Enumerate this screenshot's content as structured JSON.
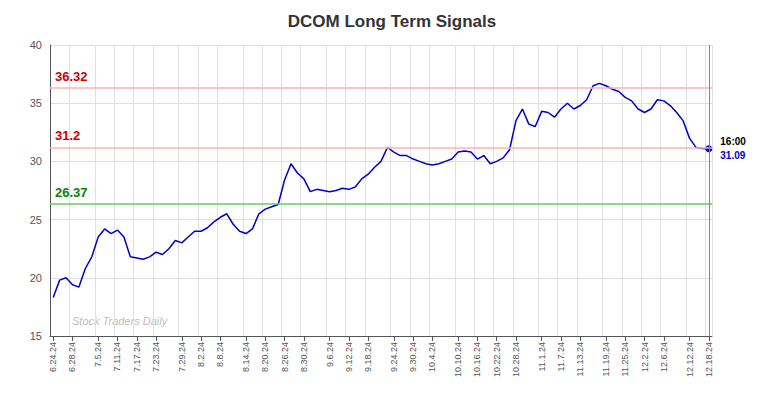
{
  "chart_data": {
    "type": "line",
    "title": "DCOM Long Term Signals",
    "watermark": "Stock Traders Daily",
    "categories": [
      "6.24.24",
      null,
      null,
      "6.28.24",
      null,
      null,
      null,
      "7.5.24",
      null,
      null,
      "7.11.24",
      null,
      null,
      "7.17.24",
      null,
      null,
      "7.23.24",
      null,
      null,
      null,
      "7.29.24",
      null,
      null,
      "8.2.24",
      null,
      null,
      "8.8.24",
      null,
      null,
      null,
      "8.14.24",
      null,
      null,
      "8.20.24",
      null,
      null,
      "8.26.24",
      null,
      null,
      "8.30.24",
      null,
      null,
      null,
      "9.6.24",
      null,
      null,
      "9.12.24",
      null,
      null,
      "9.18.24",
      null,
      null,
      null,
      "9.24.24",
      null,
      null,
      "9.30.24",
      null,
      null,
      "10.4.24",
      null,
      null,
      null,
      "10.10.24",
      null,
      null,
      "10.16.24",
      null,
      null,
      "10.22.24",
      null,
      null,
      "10.28.24",
      null,
      null,
      null,
      "11.1.24",
      null,
      null,
      "11.7.24",
      null,
      null,
      "11.13.24",
      null,
      null,
      null,
      "11.19.24",
      null,
      null,
      "11.25.24",
      null,
      null,
      "12.2.24",
      null,
      null,
      "12.6.24",
      null,
      null,
      null,
      "12.12.24",
      null,
      null,
      "12.18.24"
    ],
    "values": [
      18.3,
      19.8,
      20.0,
      19.4,
      19.2,
      20.8,
      21.8,
      23.5,
      24.2,
      23.8,
      24.1,
      23.5,
      21.8,
      21.7,
      21.6,
      21.8,
      22.2,
      22.0,
      22.5,
      23.2,
      23.0,
      23.5,
      24.0,
      24.0,
      24.3,
      24.8,
      25.2,
      25.5,
      24.6,
      24.0,
      23.8,
      24.2,
      25.5,
      25.9,
      26.1,
      26.3,
      28.4,
      29.8,
      29.0,
      28.5,
      27.4,
      27.6,
      27.5,
      27.4,
      27.5,
      27.7,
      27.6,
      27.8,
      28.5,
      28.9,
      29.5,
      30.0,
      31.2,
      30.8,
      30.5,
      30.5,
      30.2,
      30.0,
      29.8,
      29.7,
      29.8,
      30.0,
      30.2,
      30.8,
      30.9,
      30.8,
      30.2,
      30.5,
      29.8,
      30.0,
      30.3,
      31.0,
      33.5,
      34.5,
      33.2,
      33.0,
      34.3,
      34.2,
      33.8,
      34.5,
      35.0,
      34.5,
      34.8,
      35.3,
      36.5,
      36.7,
      36.5,
      36.2,
      36.0,
      35.5,
      35.2,
      34.5,
      34.2,
      34.5,
      35.3,
      35.2,
      34.8,
      34.2,
      33.5,
      32.0,
      31.2,
      31.1,
      31.09
    ],
    "color": "#0000cc",
    "ylim": [
      15,
      40
    ],
    "yticks": [
      15,
      20,
      25,
      30,
      35,
      40
    ],
    "grid": true,
    "hlines": [
      {
        "value": 36.32,
        "label": "36.32",
        "color": "#ffb3b3",
        "label_color": "#cc0000"
      },
      {
        "value": 31.2,
        "label": "31.2",
        "color": "#ffb3b3",
        "label_color": "#cc0000"
      },
      {
        "value": 26.37,
        "label": "26.37",
        "color": "#66cc66",
        "label_color": "#008800"
      }
    ],
    "end_annotations": [
      "16:00",
      "31.09"
    ]
  }
}
